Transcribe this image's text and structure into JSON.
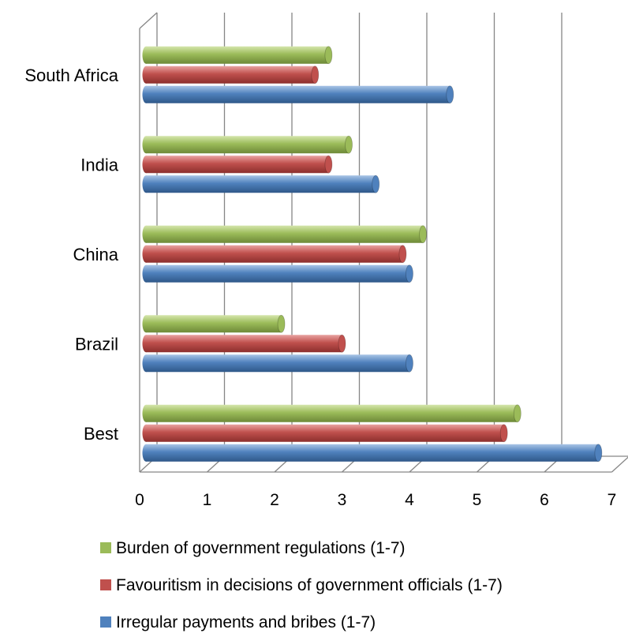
{
  "chart_data": {
    "type": "bar",
    "orientation": "horizontal",
    "categories": [
      "South Africa",
      "India",
      "China",
      "Brazil",
      "Best"
    ],
    "series": [
      {
        "name": "Burden of government regulations (1-7)",
        "color": "#9bbb59",
        "values": [
          2.8,
          3.1,
          4.2,
          2.1,
          5.6
        ]
      },
      {
        "name": "Favouritism in decisions of government officials (1-7)",
        "color": "#c0504d",
        "values": [
          2.6,
          2.8,
          3.9,
          3.0,
          5.4
        ]
      },
      {
        "name": "Irregular payments and bribes (1-7)",
        "color": "#4f81bd",
        "values": [
          4.6,
          3.5,
          4.0,
          4.0,
          6.8
        ]
      }
    ],
    "xlim": [
      0,
      7
    ],
    "x_ticks": [
      "0",
      "1",
      "2",
      "3",
      "4",
      "5",
      "6",
      "7"
    ],
    "grid": true,
    "legend_position": "bottom",
    "title": "",
    "xlabel": "",
    "ylabel": ""
  }
}
